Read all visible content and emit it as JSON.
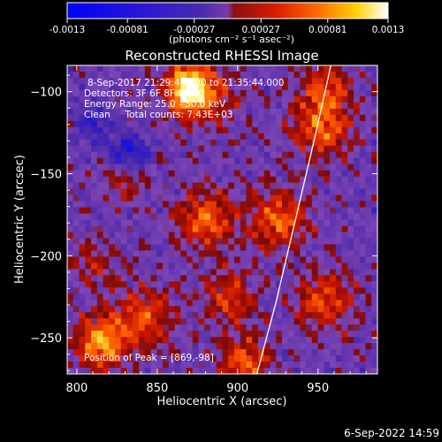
{
  "colorbar": {
    "ticks": [
      "-0.0013",
      "-0.00081",
      "-0.00027",
      "0.00027",
      "0.00081",
      "0.0013"
    ],
    "unit_label": "(photons cm⁻² s⁻¹ asec⁻²)"
  },
  "chart_data": {
    "type": "heatmap",
    "title": "Reconstructed RHESSI Image",
    "xlabel": "Heliocentric X (arcsec)",
    "ylabel": "Heliocentric Y (arcsec)",
    "xlim": [
      794,
      987
    ],
    "ylim": [
      -272,
      -84
    ],
    "xticks": [
      800,
      850,
      900,
      950
    ],
    "yticks": [
      -100,
      -150,
      -200,
      -250
    ],
    "xtick_labels": [
      "800",
      "850",
      "900",
      "950"
    ],
    "ytick_labels": [
      "−100",
      "−150",
      "−200",
      "−250"
    ],
    "value_range": [
      -0.0013,
      0.0013
    ],
    "peak": [
      869,
      -98
    ],
    "annotations": {
      "time_range": "8-Sep-2017 21:29:44.000 to 21:35:44.000",
      "detectors": "Detectors: 3F 6F 8F 9F 10",
      "energy": "Energy Range: 25.0 - 50.0 keV",
      "clean": "Clean     Total counts: 7.43E+03",
      "peak_text": "Position of Peak = [869,-98]"
    },
    "sources": [
      {
        "x": 869,
        "y": -98,
        "sigma": 9,
        "amp": 0.00135
      },
      {
        "x": 880,
        "y": -102,
        "sigma": 14,
        "amp": 0.0006
      },
      {
        "x": 815,
        "y": -253,
        "sigma": 11,
        "amp": 0.0011
      },
      {
        "x": 842,
        "y": -237,
        "sigma": 13,
        "amp": 0.0007
      },
      {
        "x": 880,
        "y": -178,
        "sigma": 12,
        "amp": 0.00085
      },
      {
        "x": 925,
        "y": -178,
        "sigma": 13,
        "amp": 0.0008
      },
      {
        "x": 952,
        "y": -122,
        "sigma": 13,
        "amp": 0.0008
      },
      {
        "x": 955,
        "y": -98,
        "sigma": 10,
        "amp": 0.0007
      },
      {
        "x": 905,
        "y": -265,
        "sigma": 11,
        "amp": 0.0008
      },
      {
        "x": 955,
        "y": -228,
        "sigma": 12,
        "amp": 0.00075
      },
      {
        "x": 895,
        "y": -225,
        "sigma": 11,
        "amp": 0.00065
      },
      {
        "x": 830,
        "y": -155,
        "sigma": 10,
        "amp": 0.00045
      },
      {
        "x": 810,
        "y": -205,
        "sigma": 10,
        "amp": 0.0004
      },
      {
        "x": 810,
        "y": -120,
        "sigma": 9,
        "amp": -0.0005
      },
      {
        "x": 833,
        "y": -138,
        "sigma": 9,
        "amp": -0.0007
      }
    ],
    "limb": [
      [
        912,
        -272
      ],
      [
        924,
        -228
      ],
      [
        936,
        -178
      ],
      [
        948,
        -128
      ],
      [
        958,
        -84
      ]
    ]
  },
  "footer": {
    "date": "6-Sep-2022 14:59"
  },
  "colors": {
    "background": "#000000",
    "text": "#ffffff",
    "colormap": [
      "#0000ff",
      "#6a2ea0",
      "#7b4bbf",
      "#8c1a1a",
      "#d11f00",
      "#ff6a00",
      "#ffb000",
      "#ffff99",
      "#ffffff"
    ]
  }
}
